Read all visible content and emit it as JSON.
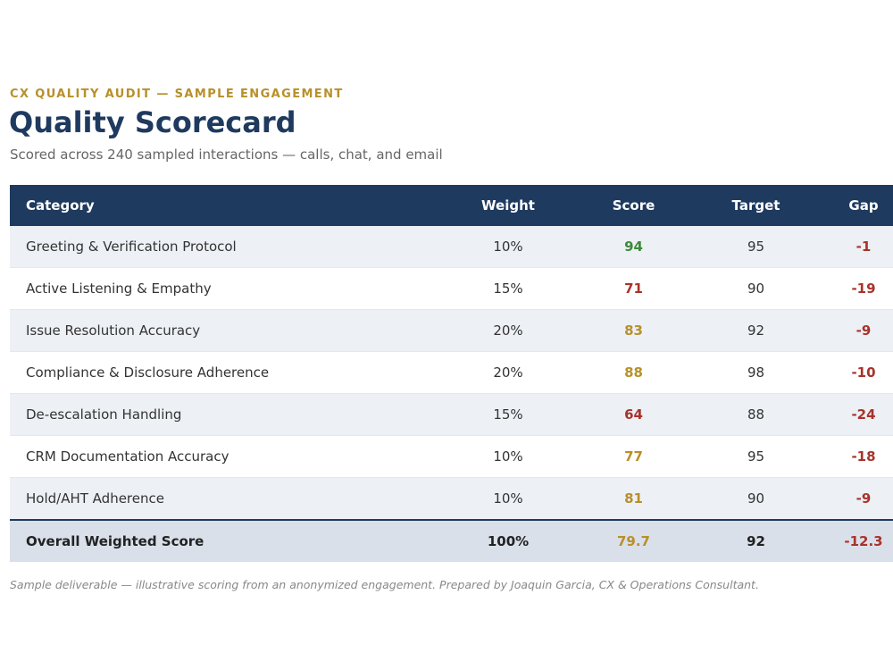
{
  "header": {
    "eyebrow": "CX QUALITY AUDIT — SAMPLE ENGAGEMENT",
    "title": "Quality Scorecard",
    "subtitle": "Scored across 240 sampled interactions — calls, chat, and email"
  },
  "table": {
    "columns": [
      "Category",
      "Weight",
      "Score",
      "Target",
      "Gap"
    ],
    "rows": [
      {
        "category": "Greeting & Verification Protocol",
        "weight": "10%",
        "score": "94",
        "target": "95",
        "gap": "-1",
        "score_status": "green"
      },
      {
        "category": "Active Listening & Empathy",
        "weight": "15%",
        "score": "71",
        "target": "90",
        "gap": "-19",
        "score_status": "red"
      },
      {
        "category": "Issue Resolution Accuracy",
        "weight": "20%",
        "score": "83",
        "target": "92",
        "gap": "-9",
        "score_status": "gold"
      },
      {
        "category": "Compliance & Disclosure Adherence",
        "weight": "20%",
        "score": "88",
        "target": "98",
        "gap": "-10",
        "score_status": "gold"
      },
      {
        "category": "De-escalation Handling",
        "weight": "15%",
        "score": "64",
        "target": "88",
        "gap": "-24",
        "score_status": "red"
      },
      {
        "category": "CRM Documentation Accuracy",
        "weight": "10%",
        "score": "77",
        "target": "95",
        "gap": "-18",
        "score_status": "gold"
      },
      {
        "category": "Hold/AHT Adherence",
        "weight": "10%",
        "score": "81",
        "target": "90",
        "gap": "-9",
        "score_status": "gold"
      }
    ],
    "total": {
      "category": "Overall Weighted Score",
      "weight": "100%",
      "score": "79.7",
      "target": "92",
      "gap": "-12.3"
    }
  },
  "colors": {
    "navy": "#1f3a5f",
    "gold": "#b8902a",
    "green": "#3a8a3a",
    "red": "#a8332b"
  },
  "footnote": "Sample deliverable — illustrative scoring from an anonymized engagement. Prepared by Joaquin Garcia, CX & Operations Consultant."
}
